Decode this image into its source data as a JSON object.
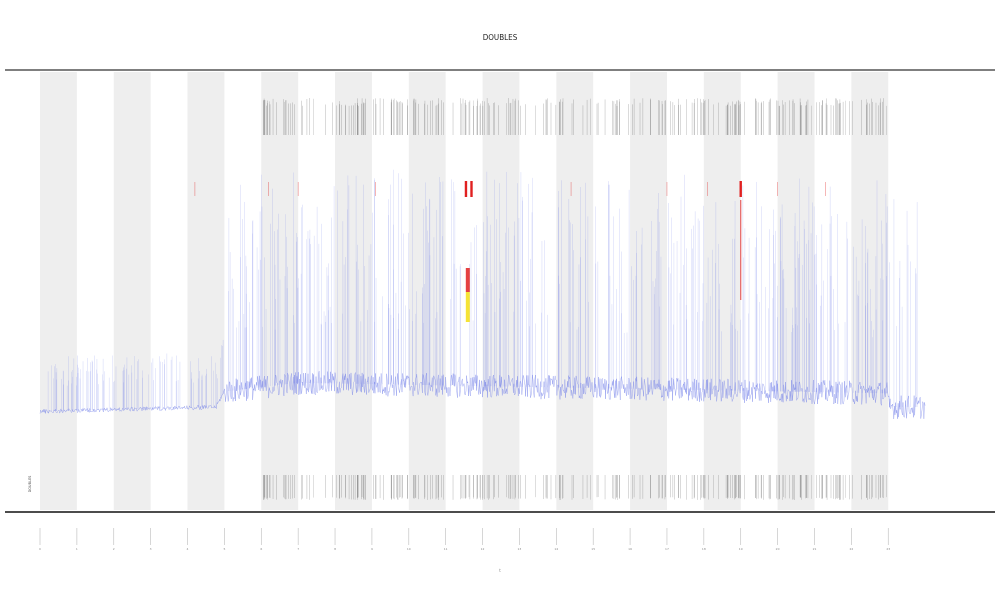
{
  "chart_data": {
    "type": "line",
    "title": "DOUBLES",
    "xlabel": "t",
    "ylabel": "",
    "x_start": 0,
    "x_end": 25,
    "y_range": [
      0,
      1
    ],
    "x_ticks": [
      0,
      1,
      2,
      3,
      4,
      5,
      6,
      7,
      8,
      9,
      10,
      11,
      12,
      13,
      14,
      15,
      16,
      17,
      18,
      19,
      20,
      21,
      22,
      23
    ],
    "shaded_bands": [
      [
        0,
        1
      ],
      [
        2,
        3
      ],
      [
        4,
        5
      ],
      [
        6,
        7
      ],
      [
        8,
        9
      ],
      [
        10,
        11
      ],
      [
        12,
        13
      ],
      [
        14,
        15
      ],
      [
        16,
        17
      ],
      [
        18,
        19
      ],
      [
        20,
        21
      ],
      [
        22,
        23
      ]
    ],
    "background_series": {
      "name": "",
      "color": "#6a78e8"
    },
    "highlight_series": [
      {
        "name": "",
        "color": "#e02020"
      },
      {
        "name": "",
        "color": "#f4e020"
      }
    ],
    "legend_text": "DOUBLES",
    "grid": false
  }
}
